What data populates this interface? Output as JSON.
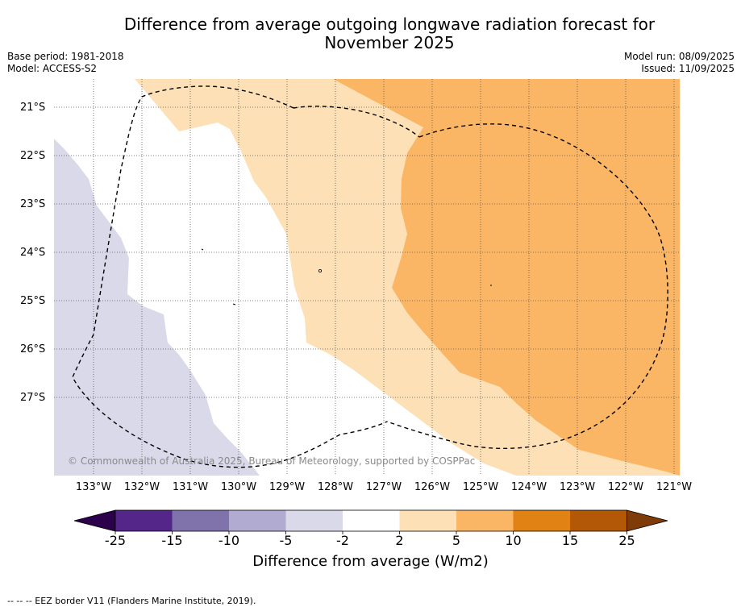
{
  "title": {
    "line1": "Difference from average outgoing longwave radiation forecast for",
    "line2": "November 2025"
  },
  "meta": {
    "base_period": "Base period: 1981-2018",
    "model": "Model: ACCESS-S2",
    "model_run": "Model run: 08/09/2025",
    "issued": "Issued: 11/09/2025"
  },
  "map": {
    "latitude_labels": [
      "21°S",
      "22°S",
      "23°S",
      "24°S",
      "25°S",
      "26°S",
      "27°S"
    ],
    "longitude_labels": [
      "133°W",
      "132°W",
      "131°W",
      "130°W",
      "129°W",
      "128°W",
      "127°W",
      "126°W",
      "125°W",
      "124°W",
      "123°W",
      "122°W",
      "121°W"
    ],
    "copyright": "© Commonwealth of Australia 2025, Bureau of Meteorology, supported by COSPPac",
    "colors": {
      "minus_10_to_minus_5": "#b1abd2",
      "minus_5_to_minus_2": "#d9d9ea",
      "minus_2_to_2": "#ffffff",
      "2_to_5": "#fde0b5",
      "5_to_10": "#fbb665"
    }
  },
  "colorbar": {
    "title": "Difference from average (W/m2)",
    "tick_labels": [
      "-25",
      "-15",
      "-10",
      "-5",
      "-2",
      "2",
      "5",
      "10",
      "15",
      "25"
    ],
    "bins": [
      {
        "from": "-25",
        "to": "-15",
        "color": "#542689"
      },
      {
        "from": "-15",
        "to": "-10",
        "color": "#8073ac"
      },
      {
        "from": "-10",
        "to": "-5",
        "color": "#b1abd2"
      },
      {
        "from": "-5",
        "to": "-2",
        "color": "#d9d9ea"
      },
      {
        "from": "-2",
        "to": "2",
        "color": "#ffffff"
      },
      {
        "from": "2",
        "to": "5",
        "color": "#fde0b5"
      },
      {
        "from": "5",
        "to": "10",
        "color": "#fbb665"
      },
      {
        "from": "10",
        "to": "15",
        "color": "#e08214"
      },
      {
        "from": "15",
        "to": "25",
        "color": "#b35806"
      }
    ],
    "extend_low_color": "#2d004b",
    "extend_high_color": "#7f3b08"
  },
  "footnote": "--  --  -- EEZ border V11 (Flanders Marine Institute, 2019)."
}
